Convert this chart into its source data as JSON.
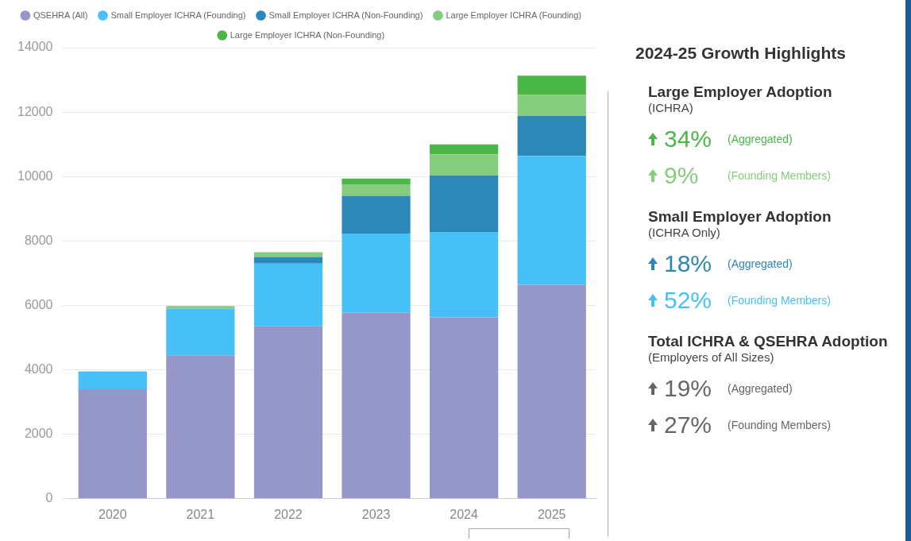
{
  "chart_data": [
    {
      "type": "bar",
      "stacked": true,
      "legend": "top",
      "grid": "y",
      "categories": [
        "2020",
        "2021",
        "2022",
        "2023",
        "2024",
        "2025"
      ],
      "ylim": [
        0,
        14000
      ],
      "yticks": [
        0,
        2000,
        4000,
        6000,
        8000,
        10000,
        12000,
        14000
      ],
      "series": [
        {
          "name": "QSEHRA (All)",
          "color": "#9497c8",
          "values": [
            3400,
            4450,
            5350,
            5780,
            5630,
            6640
          ]
        },
        {
          "name": "Small Employer ICHRA (Founding)",
          "color": "#47c0f8",
          "values": [
            550,
            1450,
            1950,
            2450,
            2650,
            4000
          ]
        },
        {
          "name": "Small Employer ICHRA (Non-Founding)",
          "color": "#2d87b8",
          "values": [
            0,
            0,
            200,
            1170,
            1750,
            1240
          ]
        },
        {
          "name": "Large Employer ICHRA (Founding)",
          "color": "#86cc7e",
          "values": [
            0,
            80,
            150,
            360,
            660,
            650
          ]
        },
        {
          "name": "Large Employer ICHRA (Non-Founding)",
          "color": "#4bb748",
          "values": [
            0,
            0,
            0,
            180,
            310,
            600
          ]
        }
      ]
    },
    {
      "type": "other",
      "title": "2024-25 Growth Highlights",
      "annotations": [
        "Large Employer Adoption",
        "(ICHRA)",
        "34%",
        "(Aggregated)",
        "9%",
        "(Founding Members)",
        "Small Employer Adoption",
        "(ICHRA Only)",
        "18%",
        "(Aggregated)",
        "52%",
        "(Founding Members)",
        "Total ICHRA & QSEHRA Adoption",
        "(Employers of All Sizes)",
        "19%",
        "(Aggregated)",
        "27%",
        "(Founding Members)"
      ]
    }
  ]
}
